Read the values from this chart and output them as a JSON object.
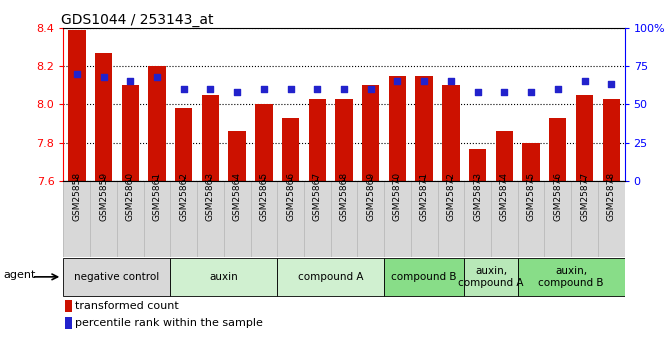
{
  "title": "GDS1044 / 253143_at",
  "samples": [
    "GSM25858",
    "GSM25859",
    "GSM25860",
    "GSM25861",
    "GSM25862",
    "GSM25863",
    "GSM25864",
    "GSM25865",
    "GSM25866",
    "GSM25867",
    "GSM25868",
    "GSM25869",
    "GSM25870",
    "GSM25871",
    "GSM25872",
    "GSM25873",
    "GSM25874",
    "GSM25875",
    "GSM25876",
    "GSM25877",
    "GSM25878"
  ],
  "bar_values": [
    8.39,
    8.27,
    8.1,
    8.2,
    7.98,
    8.05,
    7.86,
    8.0,
    7.93,
    8.03,
    8.03,
    8.1,
    8.15,
    8.15,
    8.1,
    7.77,
    7.86,
    7.8,
    7.93,
    8.05,
    8.03
  ],
  "percentile_values": [
    70,
    68,
    65,
    68,
    60,
    60,
    58,
    60,
    60,
    60,
    60,
    60,
    65,
    65,
    65,
    58,
    58,
    58,
    60,
    65,
    63
  ],
  "ymin": 7.6,
  "ymax": 8.4,
  "bar_color": "#cc1100",
  "dot_color": "#2222cc",
  "groups": [
    {
      "label": "negative control",
      "start": 0,
      "end": 3,
      "color": "#d8d8d8"
    },
    {
      "label": "auxin",
      "start": 4,
      "end": 7,
      "color": "#d0f0d0"
    },
    {
      "label": "compound A",
      "start": 8,
      "end": 11,
      "color": "#d0f0d0"
    },
    {
      "label": "compound B",
      "start": 12,
      "end": 14,
      "color": "#88dd88"
    },
    {
      "label": "auxin,\ncompound A",
      "start": 15,
      "end": 16,
      "color": "#b8e8b8"
    },
    {
      "label": "auxin,\ncompound B",
      "start": 17,
      "end": 20,
      "color": "#88dd88"
    }
  ],
  "left_yticks": [
    7.6,
    7.8,
    8.0,
    8.2,
    8.4
  ],
  "right_yticks": [
    0,
    25,
    50,
    75,
    100
  ],
  "right_yticklabels": [
    "0",
    "25",
    "50",
    "75",
    "100%"
  ],
  "xtick_bg": "#d8d8d8"
}
